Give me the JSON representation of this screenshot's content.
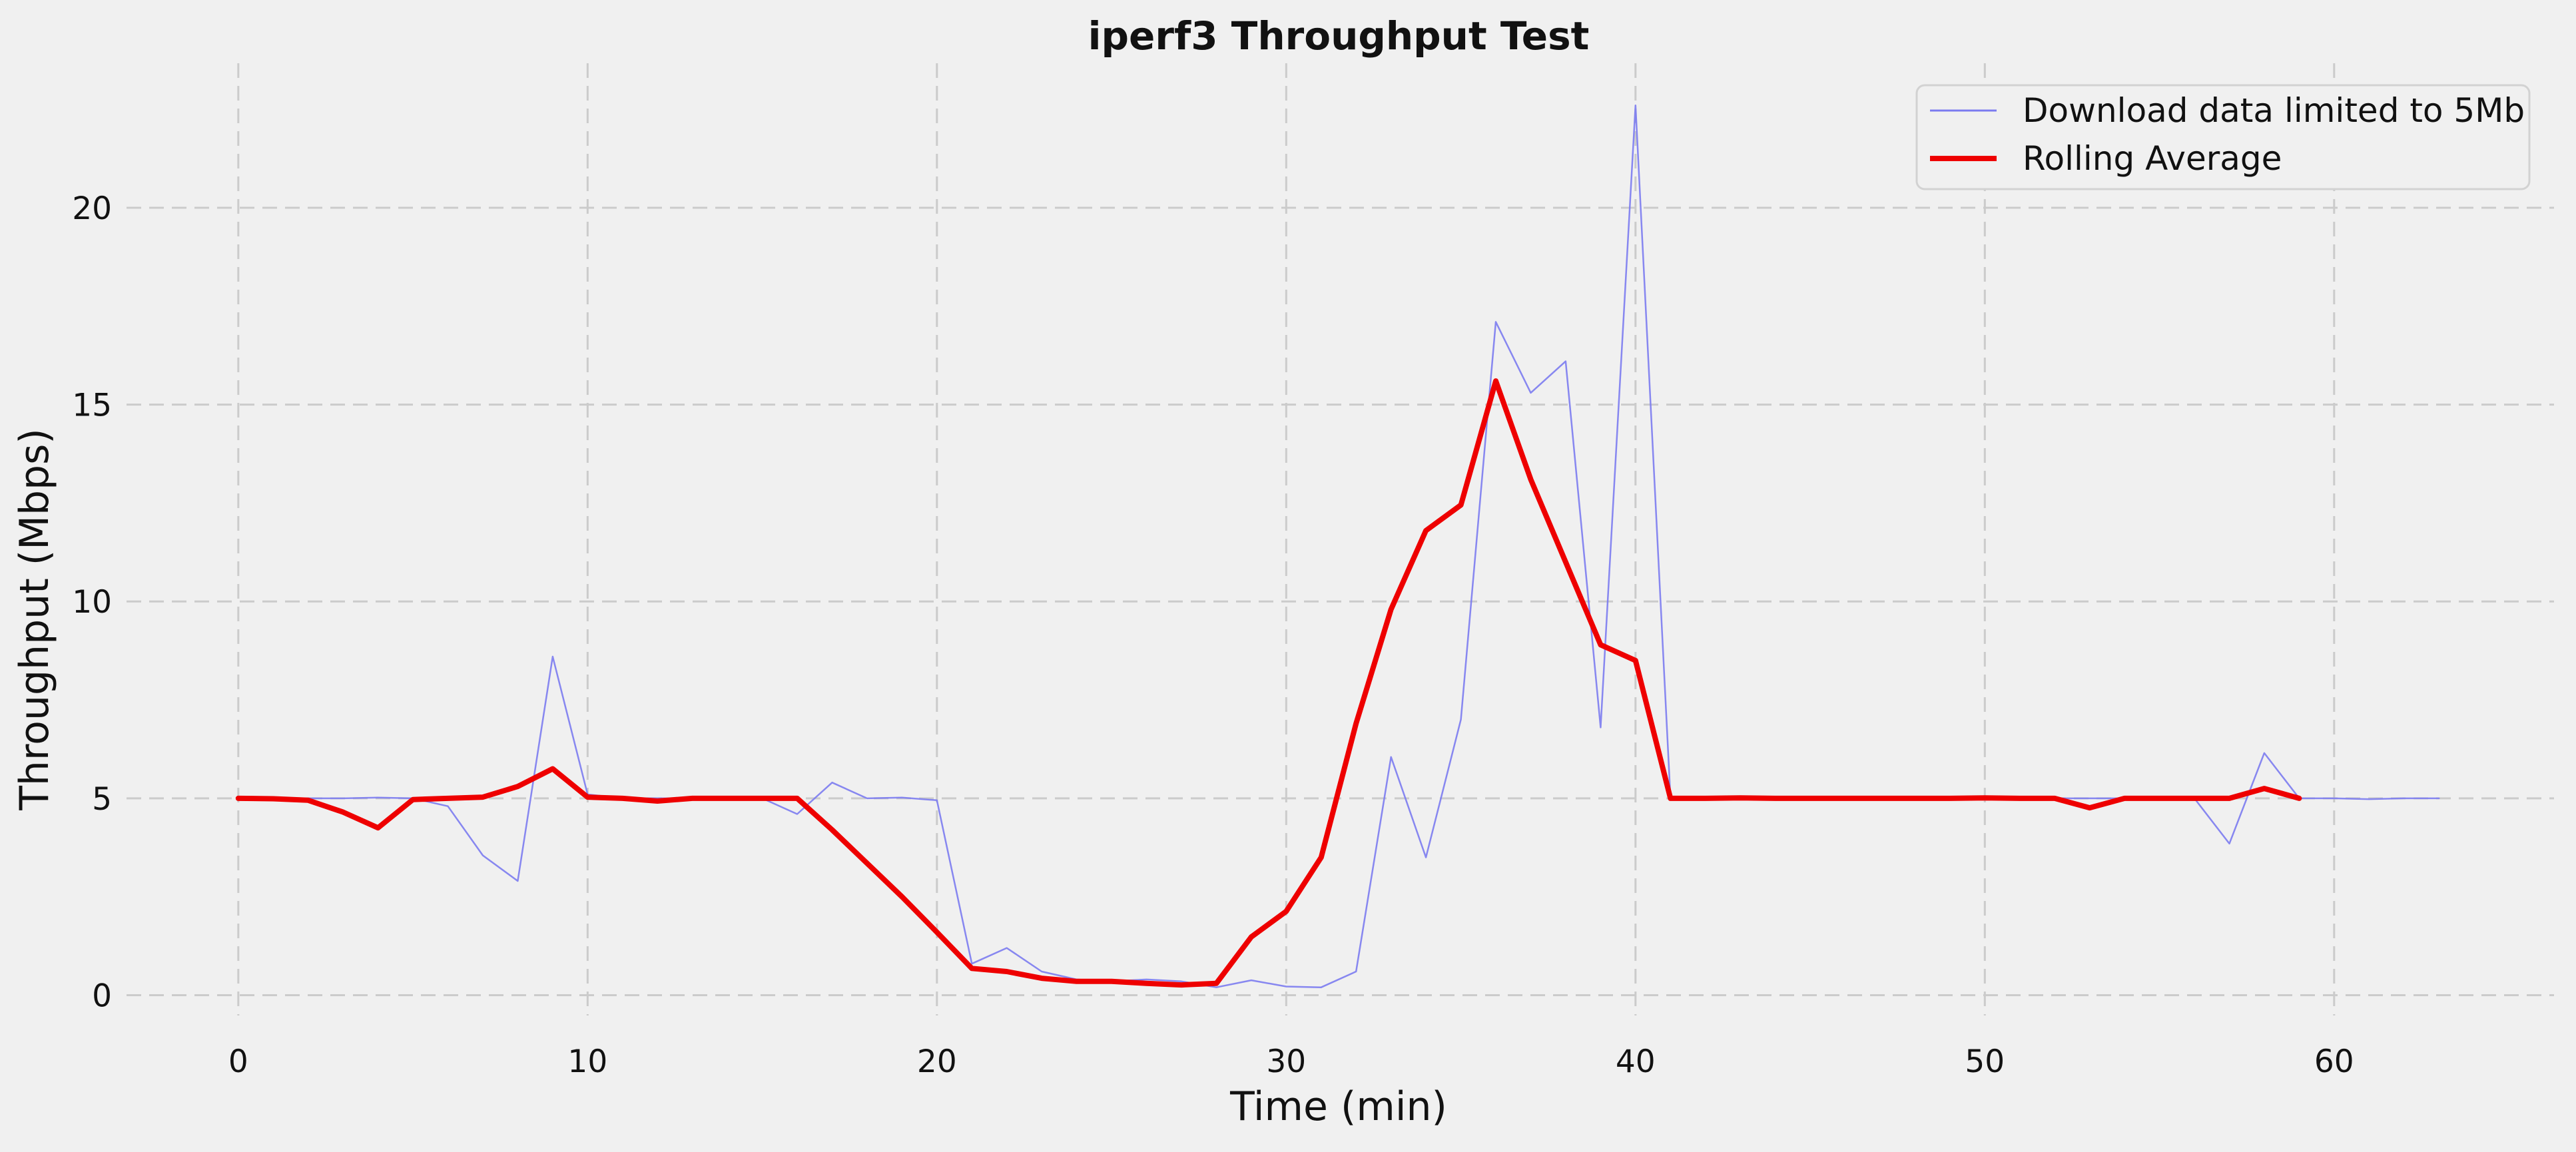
{
  "chart_data": {
    "type": "line",
    "title": "iperf3 Throughput Test",
    "xlabel": "Time (min)",
    "ylabel": "Throughput (Mbps)",
    "xlim": [
      -3.2,
      66.2
    ],
    "ylim": [
      -0.6,
      23.5
    ],
    "xticks": [
      0,
      10,
      20,
      30,
      40,
      50,
      60
    ],
    "yticks": [
      0,
      5,
      10,
      15,
      20
    ],
    "grid": true,
    "legend_position": "top-right",
    "series": [
      {
        "name": "Download data limited to 5Mb",
        "color": "#7b7bf0",
        "style": "thin",
        "x": [
          0,
          1,
          2,
          3,
          4,
          5,
          6,
          7,
          8,
          9,
          10,
          11,
          12,
          13,
          14,
          15,
          16,
          17,
          18,
          19,
          20,
          21,
          22,
          23,
          24,
          25,
          26,
          27,
          28,
          29,
          30,
          31,
          32,
          33,
          34,
          35,
          36,
          37,
          38,
          39,
          40,
          41,
          42,
          43,
          44,
          45,
          46,
          47,
          48,
          49,
          50,
          51,
          52,
          53,
          54,
          55,
          56,
          57,
          58,
          59,
          60,
          61,
          62,
          63
        ],
        "y": [
          5.0,
          5.0,
          5.0,
          5.0,
          5.02,
          5.0,
          4.8,
          3.55,
          2.9,
          8.6,
          5.1,
          5.0,
          5.0,
          5.0,
          5.0,
          5.0,
          4.6,
          5.4,
          5.0,
          5.02,
          4.95,
          0.8,
          1.2,
          0.6,
          0.4,
          0.35,
          0.4,
          0.35,
          0.2,
          0.38,
          0.22,
          0.2,
          0.6,
          6.05,
          3.5,
          7.0,
          17.1,
          15.3,
          16.1,
          6.8,
          22.6,
          5.0,
          5.0,
          5.0,
          5.0,
          5.0,
          5.0,
          5.0,
          5.0,
          5.0,
          5.0,
          5.0,
          5.0,
          5.0,
          5.0,
          5.0,
          5.0,
          3.85,
          6.15,
          5.0,
          5.0,
          4.98,
          5.0,
          5.0
        ]
      },
      {
        "name": "Rolling Average",
        "color": "#ee0000",
        "style": "thick",
        "x": [
          0,
          1,
          2,
          3,
          4,
          5,
          6,
          7,
          8,
          9,
          10,
          11,
          12,
          13,
          14,
          15,
          16,
          17,
          18,
          19,
          20,
          21,
          22,
          23,
          24,
          25,
          26,
          27,
          28,
          29,
          30,
          31,
          32,
          33,
          34,
          35,
          36,
          37,
          38,
          39,
          40,
          41,
          42,
          43,
          44,
          45,
          46,
          47,
          48,
          49,
          50,
          51,
          52,
          53,
          54,
          55,
          56,
          57,
          58,
          59
        ],
        "y": [
          5.0,
          4.99,
          4.95,
          4.65,
          4.25,
          4.97,
          5.0,
          5.03,
          5.3,
          5.75,
          5.03,
          5.0,
          4.93,
          5.0,
          5.0,
          5.0,
          5.0,
          4.2,
          3.35,
          2.5,
          1.6,
          0.68,
          0.6,
          0.43,
          0.35,
          0.35,
          0.3,
          0.26,
          0.3,
          1.48,
          2.13,
          3.5,
          6.9,
          9.8,
          11.8,
          12.45,
          15.6,
          13.1,
          11.0,
          8.9,
          8.5,
          5.0,
          5.0,
          5.01,
          5.0,
          5.0,
          5.0,
          5.0,
          5.0,
          5.0,
          5.01,
          5.0,
          5.0,
          4.76,
          5.0,
          5.0,
          5.0,
          5.0,
          5.25,
          5.0
        ]
      }
    ]
  }
}
